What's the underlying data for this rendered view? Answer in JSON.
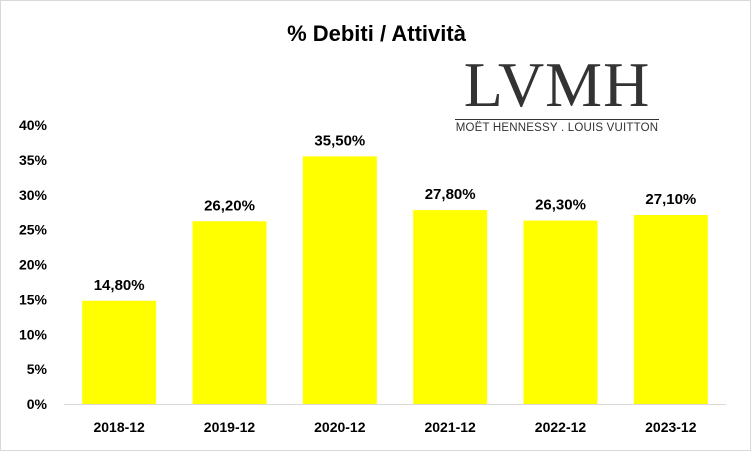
{
  "chart_data": {
    "type": "bar",
    "title": "% Debiti / Attività",
    "categories": [
      "2018-12",
      "2019-12",
      "2020-12",
      "2021-12",
      "2022-12",
      "2023-12"
    ],
    "values": [
      14.8,
      26.2,
      35.5,
      27.8,
      26.3,
      27.1
    ],
    "data_labels": [
      "14,80%",
      "26,20%",
      "35,50%",
      "27,80%",
      "26,30%",
      "27,10%"
    ],
    "y_ticks": [
      "0%",
      "5%",
      "10%",
      "15%",
      "20%",
      "25%",
      "30%",
      "35%",
      "40%"
    ],
    "ylim": [
      0,
      40
    ],
    "grid": false,
    "legend": "none",
    "bar_color": "#ffff00"
  },
  "logo": {
    "main": "LVMH",
    "sub": "MOËT HENNESSY . LOUIS VUITTON"
  }
}
